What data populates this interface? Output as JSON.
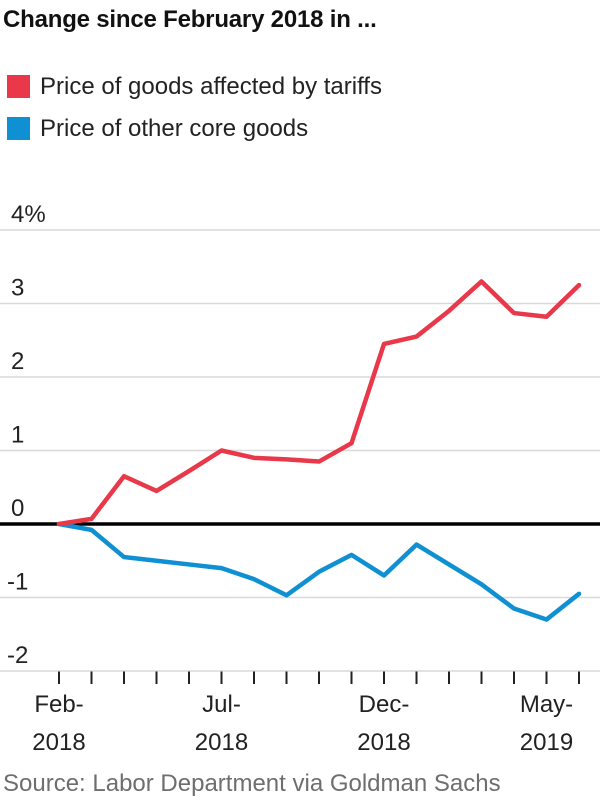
{
  "title": "Change since February 2018 in ...",
  "legend": [
    {
      "label": "Price of goods affected by tariffs",
      "color": "#e8384a"
    },
    {
      "label": "Price of other core goods",
      "color": "#0e90d2"
    }
  ],
  "source": "Source: Labor Department via Goldman Sachs",
  "palette": {
    "grid": "#d9d9d9",
    "zero_line": "#000000",
    "axis_text": "#222222",
    "tick_mark": "#222222"
  },
  "chart_data": {
    "type": "line",
    "title": "Change since February 2018 in ...",
    "x": [
      "Feb-2018",
      "Mar-2018",
      "Apr-2018",
      "May-2018",
      "Jun-2018",
      "Jul-2018",
      "Aug-2018",
      "Sep-2018",
      "Oct-2018",
      "Nov-2018",
      "Dec-2018",
      "Jan-2019",
      "Feb-2019",
      "Mar-2019",
      "Apr-2019",
      "May-2019",
      "Jun-2019"
    ],
    "series": [
      {
        "name": "Price of goods affected by tariffs",
        "color": "#e8384a",
        "values": [
          0,
          0.07,
          0.65,
          0.45,
          0.72,
          1.0,
          0.9,
          0.88,
          0.85,
          1.1,
          2.45,
          2.55,
          2.9,
          3.3,
          2.87,
          2.82,
          3.25
        ]
      },
      {
        "name": "Price of other core goods",
        "color": "#0e90d2",
        "values": [
          0,
          -0.08,
          -0.45,
          -0.5,
          -0.55,
          -0.6,
          -0.75,
          -0.97,
          -0.65,
          -0.42,
          -0.7,
          -0.28,
          -0.55,
          -0.82,
          -1.15,
          -1.3,
          -0.95
        ]
      }
    ],
    "y_axis": {
      "unit": "%",
      "ylim": [
        -2,
        4
      ],
      "ticks": [
        {
          "value": 4,
          "label": "4%"
        },
        {
          "value": 3,
          "label": "3"
        },
        {
          "value": 2,
          "label": "2"
        },
        {
          "value": 1,
          "label": "1"
        },
        {
          "value": 0,
          "label": "0"
        },
        {
          "value": -1,
          "label": "-1"
        },
        {
          "value": -2,
          "label": "-2"
        }
      ]
    },
    "x_axis": {
      "tick_count": 17,
      "labeled_ticks": [
        {
          "index": 0,
          "line1": "Feb-",
          "line2": "2018"
        },
        {
          "index": 5,
          "line1": "Jul-",
          "line2": "2018"
        },
        {
          "index": 10,
          "line1": "Dec-",
          "line2": "2018"
        },
        {
          "index": 15,
          "line1": "May-",
          "line2": "2019"
        }
      ]
    },
    "grid": true,
    "zero_line": true,
    "legend_position": "top-left"
  }
}
